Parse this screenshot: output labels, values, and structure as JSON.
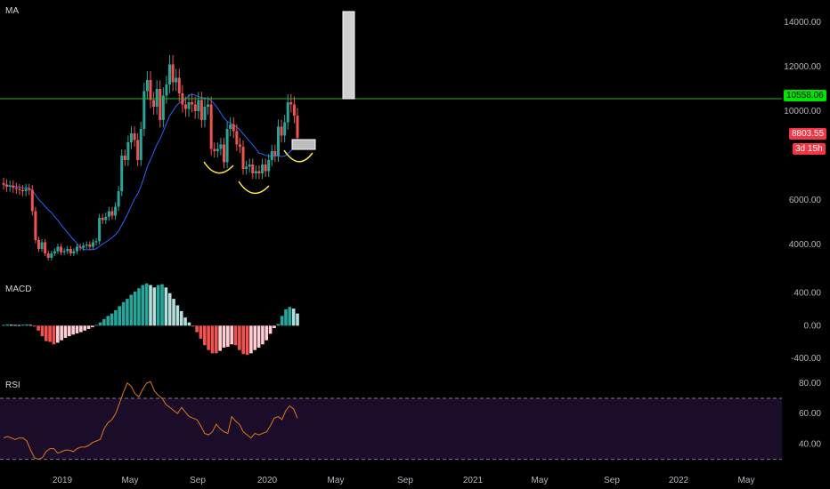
{
  "panes": {
    "main_label": "MA",
    "macd_label": "MACD",
    "rsi_label": "RSI"
  },
  "price_tags": {
    "hline": {
      "value": "10558.06",
      "bg": "#00e500",
      "fg": "#000000"
    },
    "last": {
      "value": "8803.55",
      "bg": "#f23645",
      "fg": "#ffffff"
    },
    "countdown": {
      "value": "3d 15h",
      "bg": "#f23645",
      "fg": "#ffffff"
    }
  },
  "colors": {
    "background": "#000000",
    "grid_text": "#b2b5be",
    "up": "#26a69a",
    "down": "#ef5350",
    "ma": "#2962ff",
    "hline": "#2bb52b",
    "rsi_line": "#e3751c",
    "rsi_band": "#1b0d2a"
  },
  "chart_data": [
    {
      "type": "candlestick",
      "title": "",
      "y_axis_ticks": [
        "14000.00",
        "12000.00",
        "10000.00",
        "6000.00",
        "4000.00"
      ],
      "ylim": [
        3000,
        15000
      ],
      "x_axis_ticks": [
        "2019",
        "May",
        "Sep",
        "2020",
        "May",
        "Sep",
        "2021",
        "May",
        "Sep",
        "2022",
        "May"
      ],
      "horizontal_line": 10558.06,
      "annotations": [
        "yellow arcs under local lows",
        "grey box near 8500-9000",
        "grey vertical box 10558-14600"
      ],
      "ohlc_close_series": [
        6700,
        6600,
        6650,
        6550,
        6500,
        6450,
        6400,
        6500,
        6450,
        5500,
        4200,
        3800,
        4100,
        3600,
        3400,
        3600,
        3700,
        3900,
        3650,
        3700,
        3800,
        3600,
        3700,
        3900,
        3850,
        3950,
        4000,
        3900,
        4100,
        4150,
        5200,
        5100,
        5250,
        5500,
        5300,
        5700,
        6400,
        8000,
        7800,
        8600,
        9000,
        8700,
        7800,
        9200,
        10900,
        11400,
        10500,
        10200,
        11000,
        9600,
        10700,
        11200,
        12100,
        11300,
        11500,
        10800,
        10300,
        10100,
        10400,
        10300,
        10000,
        10500,
        9600,
        10200,
        10300,
        8300,
        8200,
        8300,
        8500,
        7700,
        9200,
        9400,
        9100,
        8500,
        8400,
        7400,
        7500,
        7600,
        7200,
        7300,
        7200,
        7600,
        7300,
        7800,
        8200,
        8000,
        9300,
        8900,
        9500,
        10400,
        10300,
        9800,
        8803
      ]
    },
    {
      "type": "bar",
      "title": "MACD",
      "y_axis_ticks": [
        "400.00",
        "0.00",
        "-400.00"
      ],
      "ylim": [
        -500,
        550
      ],
      "values": [
        10,
        15,
        12,
        10,
        8,
        12,
        15,
        10,
        -5,
        -60,
        -130,
        -190,
        -200,
        -230,
        -210,
        -180,
        -150,
        -130,
        -110,
        -95,
        -80,
        -60,
        -40,
        -20,
        10,
        40,
        80,
        120,
        150,
        190,
        240,
        290,
        330,
        380,
        420,
        460,
        500,
        520,
        500,
        470,
        500,
        510,
        470,
        400,
        330,
        250,
        180,
        100,
        40,
        -10,
        -80,
        -160,
        -240,
        -300,
        -340,
        -340,
        -310,
        -270,
        -260,
        -230,
        -240,
        -300,
        -350,
        -360,
        -340,
        -300,
        -270,
        -230,
        -180,
        -100,
        -30,
        20,
        120,
        200,
        230,
        210,
        150
      ]
    },
    {
      "type": "line",
      "title": "RSI",
      "y_axis_ticks": [
        "80.00",
        "60.00",
        "40.00"
      ],
      "ylim": [
        28,
        84
      ],
      "band": [
        30,
        70
      ],
      "values": [
        44,
        45,
        44,
        43,
        44,
        44,
        42,
        36,
        31,
        30,
        31,
        35,
        37,
        37,
        34,
        35,
        36,
        36,
        35,
        37,
        38,
        38,
        39,
        41,
        42,
        43,
        50,
        54,
        56,
        60,
        67,
        74,
        80,
        78,
        73,
        71,
        76,
        80,
        81,
        75,
        72,
        70,
        66,
        64,
        62,
        60,
        64,
        61,
        58,
        57,
        56,
        52,
        47,
        46,
        48,
        53,
        50,
        48,
        47,
        58,
        55,
        53,
        48,
        46,
        44,
        47,
        46,
        47,
        48,
        52,
        57,
        58,
        56,
        62,
        65,
        63,
        57
      ]
    }
  ]
}
